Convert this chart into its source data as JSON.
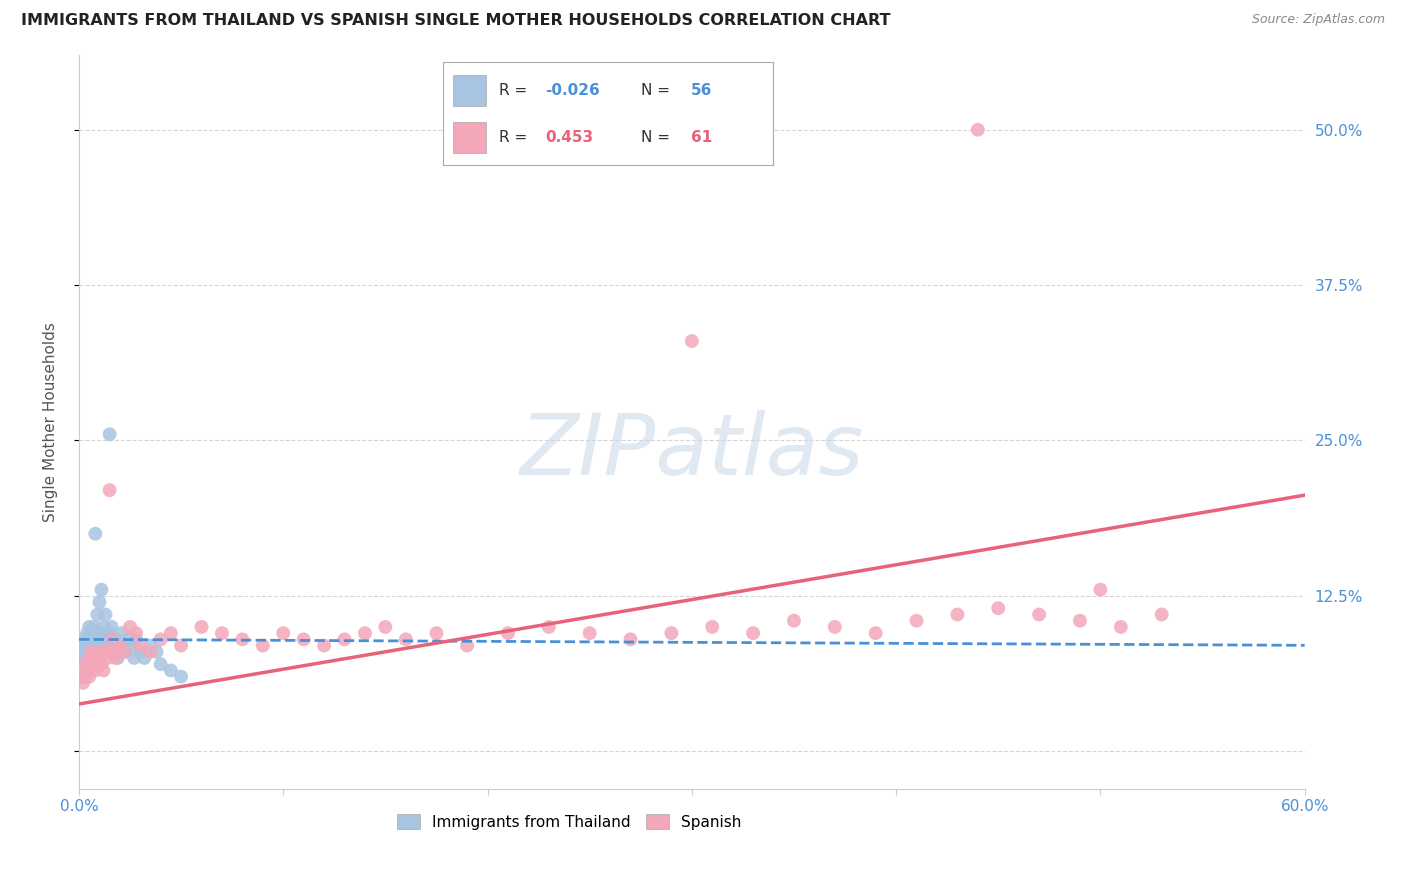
{
  "title": "IMMIGRANTS FROM THAILAND VS SPANISH SINGLE MOTHER HOUSEHOLDS CORRELATION CHART",
  "source": "Source: ZipAtlas.com",
  "ylabel": "Single Mother Households",
  "xlim": [
    0.0,
    0.6
  ],
  "ylim": [
    -0.03,
    0.56
  ],
  "yticks": [
    0.0,
    0.125,
    0.25,
    0.375,
    0.5
  ],
  "ytick_labels": [
    "",
    "12.5%",
    "25.0%",
    "37.5%",
    "50.0%"
  ],
  "xticks": [
    0.0,
    0.1,
    0.2,
    0.3,
    0.4,
    0.5,
    0.6
  ],
  "xtick_labels": [
    "0.0%",
    "",
    "",
    "",
    "",
    "",
    "60.0%"
  ],
  "blue_R": -0.026,
  "blue_N": 56,
  "pink_R": 0.453,
  "pink_N": 61,
  "blue_color": "#a8c4e0",
  "pink_color": "#f4a7b9",
  "blue_line_color": "#4a90d9",
  "pink_line_color": "#e8637a",
  "tick_label_color": "#4a90d9",
  "grid_color": "#cccccc",
  "background_color": "#ffffff",
  "blue_x": [
    0.001,
    0.002,
    0.002,
    0.003,
    0.003,
    0.003,
    0.004,
    0.004,
    0.004,
    0.005,
    0.005,
    0.005,
    0.005,
    0.006,
    0.006,
    0.006,
    0.007,
    0.007,
    0.007,
    0.008,
    0.008,
    0.008,
    0.009,
    0.009,
    0.01,
    0.01,
    0.011,
    0.011,
    0.012,
    0.012,
    0.013,
    0.013,
    0.014,
    0.015,
    0.015,
    0.016,
    0.017,
    0.018,
    0.019,
    0.02,
    0.021,
    0.022,
    0.023,
    0.024,
    0.025,
    0.027,
    0.028,
    0.03,
    0.032,
    0.035,
    0.038,
    0.04,
    0.045,
    0.05,
    0.015,
    0.008
  ],
  "blue_y": [
    0.08,
    0.09,
    0.075,
    0.085,
    0.07,
    0.06,
    0.095,
    0.08,
    0.065,
    0.09,
    0.085,
    0.075,
    0.1,
    0.08,
    0.07,
    0.09,
    0.095,
    0.085,
    0.1,
    0.09,
    0.08,
    0.095,
    0.085,
    0.11,
    0.09,
    0.12,
    0.095,
    0.13,
    0.1,
    0.085,
    0.095,
    0.11,
    0.085,
    0.09,
    0.095,
    0.1,
    0.085,
    0.09,
    0.075,
    0.08,
    0.095,
    0.085,
    0.08,
    0.09,
    0.085,
    0.075,
    0.09,
    0.08,
    0.075,
    0.085,
    0.08,
    0.07,
    0.065,
    0.06,
    0.255,
    0.175
  ],
  "pink_x": [
    0.001,
    0.002,
    0.003,
    0.004,
    0.005,
    0.005,
    0.006,
    0.007,
    0.008,
    0.009,
    0.01,
    0.011,
    0.012,
    0.013,
    0.014,
    0.015,
    0.016,
    0.017,
    0.018,
    0.02,
    0.022,
    0.025,
    0.028,
    0.03,
    0.035,
    0.04,
    0.045,
    0.05,
    0.06,
    0.07,
    0.08,
    0.09,
    0.1,
    0.11,
    0.12,
    0.13,
    0.14,
    0.15,
    0.16,
    0.175,
    0.19,
    0.21,
    0.23,
    0.25,
    0.27,
    0.29,
    0.31,
    0.33,
    0.35,
    0.37,
    0.39,
    0.41,
    0.43,
    0.45,
    0.47,
    0.49,
    0.51,
    0.53,
    0.3,
    0.44,
    0.5
  ],
  "pink_y": [
    0.06,
    0.055,
    0.07,
    0.065,
    0.06,
    0.075,
    0.08,
    0.07,
    0.065,
    0.075,
    0.08,
    0.07,
    0.065,
    0.08,
    0.075,
    0.21,
    0.09,
    0.08,
    0.075,
    0.085,
    0.08,
    0.1,
    0.095,
    0.085,
    0.08,
    0.09,
    0.095,
    0.085,
    0.1,
    0.095,
    0.09,
    0.085,
    0.095,
    0.09,
    0.085,
    0.09,
    0.095,
    0.1,
    0.09,
    0.095,
    0.085,
    0.095,
    0.1,
    0.095,
    0.09,
    0.095,
    0.1,
    0.095,
    0.105,
    0.1,
    0.095,
    0.105,
    0.11,
    0.115,
    0.11,
    0.105,
    0.1,
    0.11,
    0.33,
    0.5,
    0.13
  ]
}
